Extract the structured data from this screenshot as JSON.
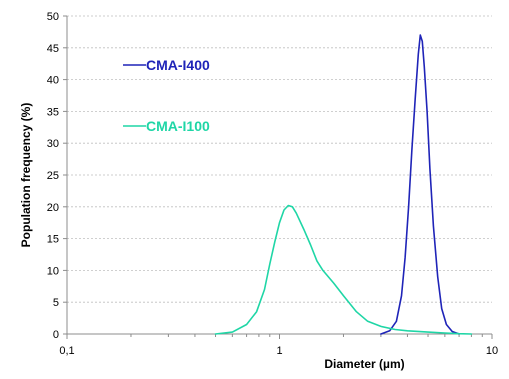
{
  "chart_data": {
    "type": "line",
    "title": "",
    "xlabel": "Diameter (µm)",
    "ylabel": "Population frequency (%)",
    "xscale": "log",
    "xlim": [
      0.1,
      10
    ],
    "ylim": [
      0,
      50
    ],
    "xticks": [
      0.1,
      1,
      10
    ],
    "xtick_labels": [
      "0,1",
      "1",
      "10"
    ],
    "yticks": [
      0,
      5,
      10,
      15,
      20,
      25,
      30,
      35,
      40,
      45,
      50
    ],
    "ytick_labels": [
      "0",
      "5",
      "10",
      "15",
      "20",
      "25",
      "30",
      "35",
      "40",
      "45",
      "50"
    ],
    "grid": "horizontal",
    "legend": "inline labels",
    "series": [
      {
        "name": "CMA-I400",
        "color": "#1f24b8",
        "x": [
          3.0,
          3.3,
          3.55,
          3.75,
          3.9,
          4.05,
          4.2,
          4.35,
          4.5,
          4.6,
          4.7,
          4.8,
          4.95,
          5.1,
          5.3,
          5.55,
          5.8,
          6.1,
          6.5,
          7.0
        ],
        "y": [
          0,
          0.5,
          2,
          6,
          12,
          20,
          29,
          37,
          44,
          47,
          46,
          42,
          35,
          26,
          17,
          9,
          4,
          1.5,
          0.4,
          0
        ]
      },
      {
        "name": "CMA-I100",
        "color": "#1fd6a6",
        "x": [
          0.5,
          0.6,
          0.7,
          0.78,
          0.85,
          0.9,
          0.95,
          1.0,
          1.05,
          1.1,
          1.15,
          1.2,
          1.3,
          1.4,
          1.5,
          1.6,
          1.8,
          2.0,
          2.3,
          2.6,
          3.0,
          3.5,
          4.0,
          5.0,
          6.0,
          7.0,
          8.0
        ],
        "y": [
          0,
          0.3,
          1.5,
          3.5,
          7,
          11,
          14.5,
          17.5,
          19.5,
          20.2,
          20,
          19,
          16.5,
          14,
          11.5,
          10,
          8,
          6,
          3.5,
          2,
          1.2,
          0.7,
          0.5,
          0.3,
          0.15,
          0.05,
          0
        ]
      }
    ],
    "annotations": [
      {
        "text": "CMA-I400",
        "series": 0
      },
      {
        "text": "CMA-I100",
        "series": 1
      }
    ]
  }
}
